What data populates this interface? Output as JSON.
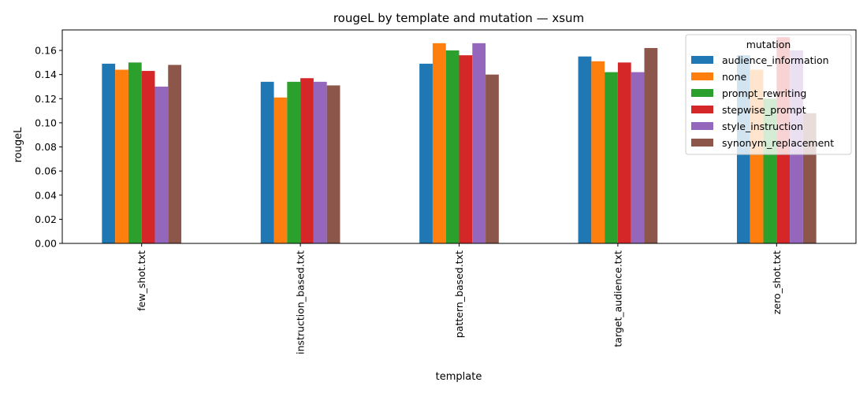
{
  "chart_data": {
    "type": "bar",
    "title": "rougeL by template and mutation — xsum",
    "xlabel": "template",
    "ylabel": "rougeL",
    "ylim": [
      0,
      0.177
    ],
    "yticks": [
      "0.00",
      "0.02",
      "0.04",
      "0.06",
      "0.08",
      "0.10",
      "0.12",
      "0.14",
      "0.16"
    ],
    "grid": false,
    "legend": {
      "title": "mutation",
      "placement": "top-right"
    },
    "categories": [
      "few_shot.txt",
      "instruction_based.txt",
      "pattern_based.txt",
      "target_audience.txt",
      "zero_shot.txt"
    ],
    "series": [
      {
        "name": "audience_information",
        "color": "#1f77b4",
        "values": [
          0.149,
          0.134,
          0.149,
          0.155,
          0.156
        ]
      },
      {
        "name": "none",
        "color": "#ff7f0e",
        "values": [
          0.144,
          0.121,
          0.166,
          0.151,
          0.144
        ]
      },
      {
        "name": "prompt_rewriting",
        "color": "#2ca02c",
        "values": [
          0.15,
          0.134,
          0.16,
          0.142,
          0.12
        ]
      },
      {
        "name": "stepwise_prompt",
        "color": "#d62728",
        "values": [
          0.143,
          0.137,
          0.156,
          0.15,
          0.171
        ]
      },
      {
        "name": "style_instruction",
        "color": "#9467bd",
        "values": [
          0.13,
          0.134,
          0.166,
          0.142,
          0.16
        ]
      },
      {
        "name": "synonym_replacement",
        "color": "#8c564b",
        "values": [
          0.148,
          0.131,
          0.14,
          0.162,
          0.108
        ]
      }
    ]
  }
}
